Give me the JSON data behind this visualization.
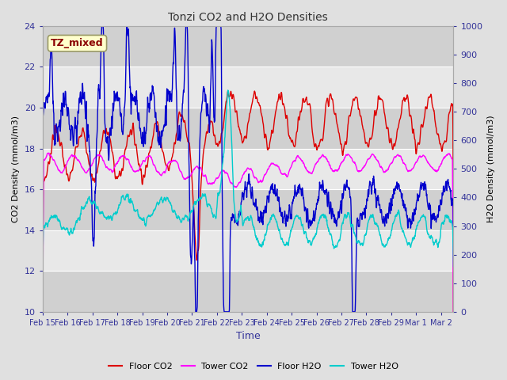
{
  "title": "Tonzi CO2 and H2O Densities",
  "xlabel": "Time",
  "ylabel_left": "CO2 Density (mmol/m3)",
  "ylabel_right": "H2O Density (mmol/m3)",
  "ylim_left": [
    10,
    24
  ],
  "ylim_right": [
    0,
    1000
  ],
  "annotation_text": "TZ_mixed",
  "annotation_color": "#8B0000",
  "annotation_bg": "#ffffcc",
  "annotation_edge": "#999966",
  "colors": {
    "floor_co2": "#dd0000",
    "tower_co2": "#ff00ff",
    "floor_h2o": "#0000cc",
    "tower_h2o": "#00cccc"
  },
  "legend_labels": [
    "Floor CO2",
    "Tower CO2",
    "Floor H2O",
    "Tower H2O"
  ],
  "bg_color": "#e0e0e0",
  "plot_bg_light": "#e8e8e8",
  "plot_bg_dark": "#d0d0d0",
  "grid_color": "#ffffff",
  "tick_label_color": "#333399",
  "axis_label_color": "#000000",
  "title_color": "#333333",
  "figsize": [
    6.4,
    4.8
  ],
  "dpi": 100
}
